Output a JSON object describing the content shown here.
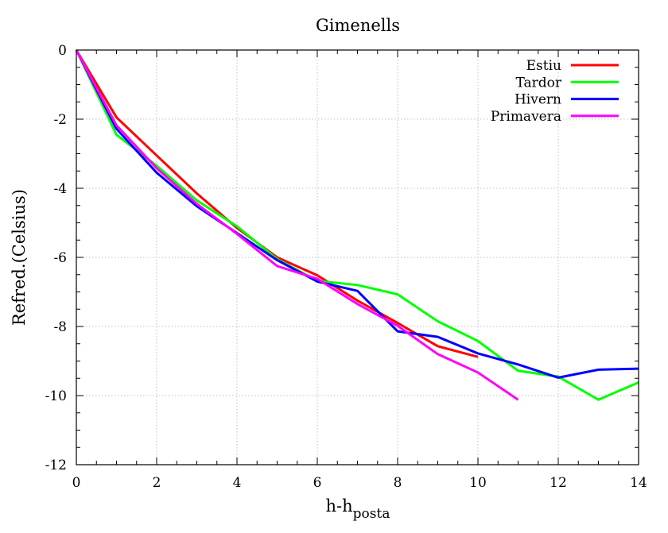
{
  "chart_data": {
    "type": "line",
    "title": "Gimenells",
    "xlabel_main": "h-h",
    "xlabel_sub": "posta",
    "ylabel": "Refred.(Celsius)",
    "xlim": [
      0,
      14
    ],
    "ylim": [
      -12,
      0
    ],
    "xticks": [
      0,
      2,
      4,
      6,
      8,
      10,
      12,
      14
    ],
    "yticks": [
      0,
      -2,
      -4,
      -6,
      -8,
      -10,
      -12
    ],
    "x_minor_step": 0.5,
    "y_minor_step": 0.5,
    "grid": true,
    "legend_position": "top-right",
    "series": [
      {
        "name": "Estiu",
        "color": "#ff0000",
        "x": [
          0,
          1,
          2,
          3,
          4,
          5,
          6,
          7,
          8,
          9,
          10
        ],
        "y": [
          0,
          -1.95,
          -3.05,
          -4.15,
          -5.15,
          -6.0,
          -6.52,
          -7.25,
          -7.9,
          -8.57,
          -8.88
        ]
      },
      {
        "name": "Tardor",
        "color": "#00ff00",
        "x": [
          0,
          1,
          2,
          3,
          4,
          5,
          6,
          7,
          8,
          9,
          10,
          11,
          12,
          13,
          14
        ],
        "y": [
          0,
          -2.45,
          -3.35,
          -4.35,
          -5.1,
          -6.05,
          -6.68,
          -6.8,
          -7.07,
          -7.85,
          -8.42,
          -9.28,
          -9.45,
          -10.12,
          -9.62
        ]
      },
      {
        "name": "Hivern",
        "color": "#0000ff",
        "x": [
          0,
          1,
          2,
          3,
          4,
          5,
          6,
          7,
          8,
          9,
          10,
          11,
          12,
          13,
          14
        ],
        "y": [
          0,
          -2.28,
          -3.55,
          -4.52,
          -5.3,
          -6.08,
          -6.7,
          -6.97,
          -8.14,
          -8.3,
          -8.78,
          -9.1,
          -9.48,
          -9.25,
          -9.22
        ]
      },
      {
        "name": "Primavera",
        "color": "#ff00ff",
        "x": [
          0,
          1,
          2,
          3,
          4,
          5,
          6,
          7,
          8,
          9,
          10,
          11
        ],
        "y": [
          0,
          -2.18,
          -3.42,
          -4.45,
          -5.32,
          -6.25,
          -6.62,
          -7.35,
          -7.98,
          -8.8,
          -9.33,
          -10.12
        ]
      }
    ]
  }
}
